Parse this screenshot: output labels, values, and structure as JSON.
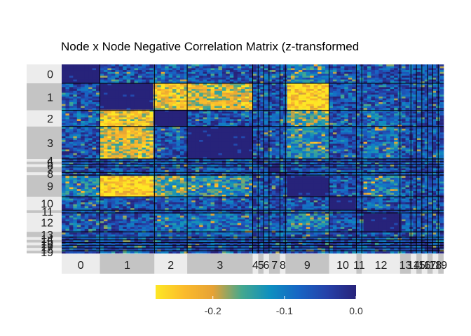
{
  "chart_data": {
    "type": "heatmap",
    "title": "Node x Node Negative Correlation Matrix (z-transformed",
    "xlabel": "",
    "ylabel": "",
    "modules": [
      {
        "label": "0",
        "size": 7
      },
      {
        "label": "1",
        "size": 10
      },
      {
        "label": "2",
        "size": 6
      },
      {
        "label": "3",
        "size": 12
      },
      {
        "label": "4",
        "size": 1
      },
      {
        "label": "5",
        "size": 1
      },
      {
        "label": "6",
        "size": 1
      },
      {
        "label": "7",
        "size": 2
      },
      {
        "label": "8",
        "size": 1
      },
      {
        "label": "9",
        "size": 8
      },
      {
        "label": "10",
        "size": 5
      },
      {
        "label": "11",
        "size": 1
      },
      {
        "label": "12",
        "size": 7
      },
      {
        "label": "13",
        "size": 2
      },
      {
        "label": "14",
        "size": 1
      },
      {
        "label": "15",
        "size": 1
      },
      {
        "label": "16",
        "size": 1
      },
      {
        "label": "17",
        "size": 1
      },
      {
        "label": "18",
        "size": 1
      },
      {
        "label": "19",
        "size": 1
      }
    ],
    "block_values": {
      "within_module": 0.0,
      "background": -0.05,
      "strong_negative_pairs": [
        [
          "1",
          "2",
          -0.22
        ],
        [
          "1",
          "3",
          -0.2
        ],
        [
          "1",
          "9",
          -0.25
        ],
        [
          "2",
          "9",
          -0.15
        ],
        [
          "3",
          "9",
          -0.12
        ],
        [
          "2",
          "3",
          -0.05
        ],
        [
          "9",
          "12",
          -0.1
        ],
        [
          "3",
          "12",
          -0.08
        ],
        [
          "2",
          "12",
          -0.08
        ],
        [
          "0",
          "9",
          -0.1
        ],
        [
          "0",
          "2",
          -0.07
        ]
      ]
    },
    "legend": {
      "ticks": [
        "-0.2",
        "-0.1",
        "0.0"
      ],
      "tick_values": [
        -0.2,
        -0.1,
        0.0
      ],
      "range": [
        -0.28,
        0.0
      ],
      "placement": "bottom",
      "colors": [
        "#fde725",
        "#fbbb2c",
        "#e6a235",
        "#45a88e",
        "#0e8fc0",
        "#1765c4",
        "#2641a8",
        "#27237a"
      ]
    },
    "grid": false
  }
}
